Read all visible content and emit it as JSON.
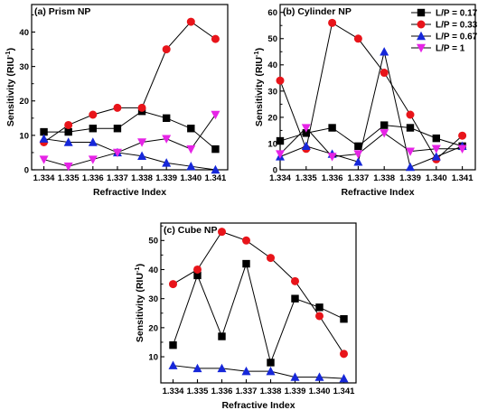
{
  "legend": {
    "entries": [
      {
        "label": "L/P = 0.17",
        "color": "#000000",
        "marker": "square"
      },
      {
        "label": "L/P =  0.33",
        "color": "#e8141a",
        "marker": "circle"
      },
      {
        "label": "L/P = 0.67",
        "color": "#1627d9",
        "marker": "triangle-up"
      },
      {
        "label": "L/P = 1",
        "color": "#e624e6",
        "marker": "triangle-down"
      }
    ]
  },
  "chart_data": [
    {
      "type": "line",
      "panel_label": "(a) Prism NP",
      "xlabel": "Refractive Index",
      "ylabel": "Sensitivity (RIU",
      "ylabel_superscript": "-1",
      "ylabel_suffix": ")",
      "x": [
        1.334,
        1.335,
        1.336,
        1.337,
        1.338,
        1.339,
        1.34,
        1.341
      ],
      "x_tick_labels": [
        "1.334",
        "1.335",
        "1.336",
        "1.337",
        "1.338",
        "1.339",
        "1.340",
        "1.341"
      ],
      "xlim": [
        1.3335,
        1.3415
      ],
      "ylim": [
        0,
        48
      ],
      "y_ticks": [
        0,
        10,
        20,
        30,
        40
      ],
      "y_tick_labels": [
        "0",
        "10",
        "20",
        "30",
        "40"
      ],
      "series": [
        {
          "marker": "square",
          "color": "#000000",
          "values": [
            11,
            11,
            12,
            12,
            17,
            15,
            12,
            6
          ]
        },
        {
          "marker": "circle",
          "color": "#e8141a",
          "values": [
            8,
            13,
            16,
            18,
            18,
            35,
            43,
            38
          ]
        },
        {
          "marker": "triangle-up",
          "color": "#1627d9",
          "values": [
            9,
            8,
            8,
            5,
            4,
            2,
            1,
            0
          ]
        },
        {
          "marker": "triangle-down",
          "color": "#e624e6",
          "values": [
            3,
            1,
            3,
            5,
            8,
            9,
            6,
            16
          ]
        }
      ]
    },
    {
      "type": "line",
      "panel_label": "(b) Cylinder NP",
      "xlabel": "Refractive Index",
      "ylabel": "Sensitivity (RIU",
      "ylabel_superscript": "-1",
      "ylabel_suffix": ")",
      "x": [
        1.334,
        1.335,
        1.336,
        1.337,
        1.338,
        1.339,
        1.34,
        1.341
      ],
      "x_tick_labels": [
        "1.334",
        "1.335",
        "1.336",
        "1.337",
        "1.338",
        "1.339",
        "1.340",
        "1.341"
      ],
      "xlim": [
        1.334,
        1.3415
      ],
      "ylim": [
        0,
        63
      ],
      "y_ticks": [
        0,
        10,
        20,
        30,
        40,
        50,
        60
      ],
      "y_tick_labels": [
        "0",
        "10",
        "20",
        "30",
        "40",
        "50",
        "60"
      ],
      "series": [
        {
          "marker": "square",
          "color": "#000000",
          "values": [
            11,
            14,
            16,
            9,
            17,
            16,
            12,
            9
          ]
        },
        {
          "marker": "circle",
          "color": "#e8141a",
          "values": [
            34,
            8,
            56,
            50,
            37,
            21,
            4,
            13
          ]
        },
        {
          "marker": "triangle-up",
          "color": "#1627d9",
          "values": [
            5,
            9,
            6,
            3,
            45,
            1,
            5,
            9
          ]
        },
        {
          "marker": "triangle-down",
          "color": "#e624e6",
          "values": [
            6,
            16,
            5,
            6,
            14,
            7,
            8,
            8
          ]
        }
      ]
    },
    {
      "type": "line",
      "panel_label": "(c) Cube NP",
      "xlabel": "Refractive Index",
      "ylabel": "Sensitivity (RIU",
      "ylabel_superscript": "-1",
      "ylabel_suffix": ")",
      "x": [
        1.334,
        1.335,
        1.336,
        1.337,
        1.338,
        1.339,
        1.34,
        1.341
      ],
      "x_tick_labels": [
        "1.334",
        "1.335",
        "1.336",
        "1.337",
        "1.338",
        "1.339",
        "1.340",
        "1.341"
      ],
      "xlim": [
        1.3335,
        1.3415
      ],
      "ylim": [
        1,
        56
      ],
      "y_ticks": [
        10,
        20,
        30,
        40,
        50
      ],
      "y_tick_labels": [
        "10",
        "20",
        "30",
        "40",
        "50"
      ],
      "series": [
        {
          "marker": "square",
          "color": "#000000",
          "values": [
            14,
            38,
            17,
            42,
            8,
            30,
            27,
            23
          ]
        },
        {
          "marker": "circle",
          "color": "#e8141a",
          "values": [
            35,
            40,
            53,
            50,
            44,
            36,
            24,
            11
          ]
        },
        {
          "marker": "triangle-up",
          "color": "#1627d9",
          "values": [
            7,
            6,
            6,
            5,
            5,
            3,
            3,
            2.5
          ]
        }
      ]
    }
  ]
}
